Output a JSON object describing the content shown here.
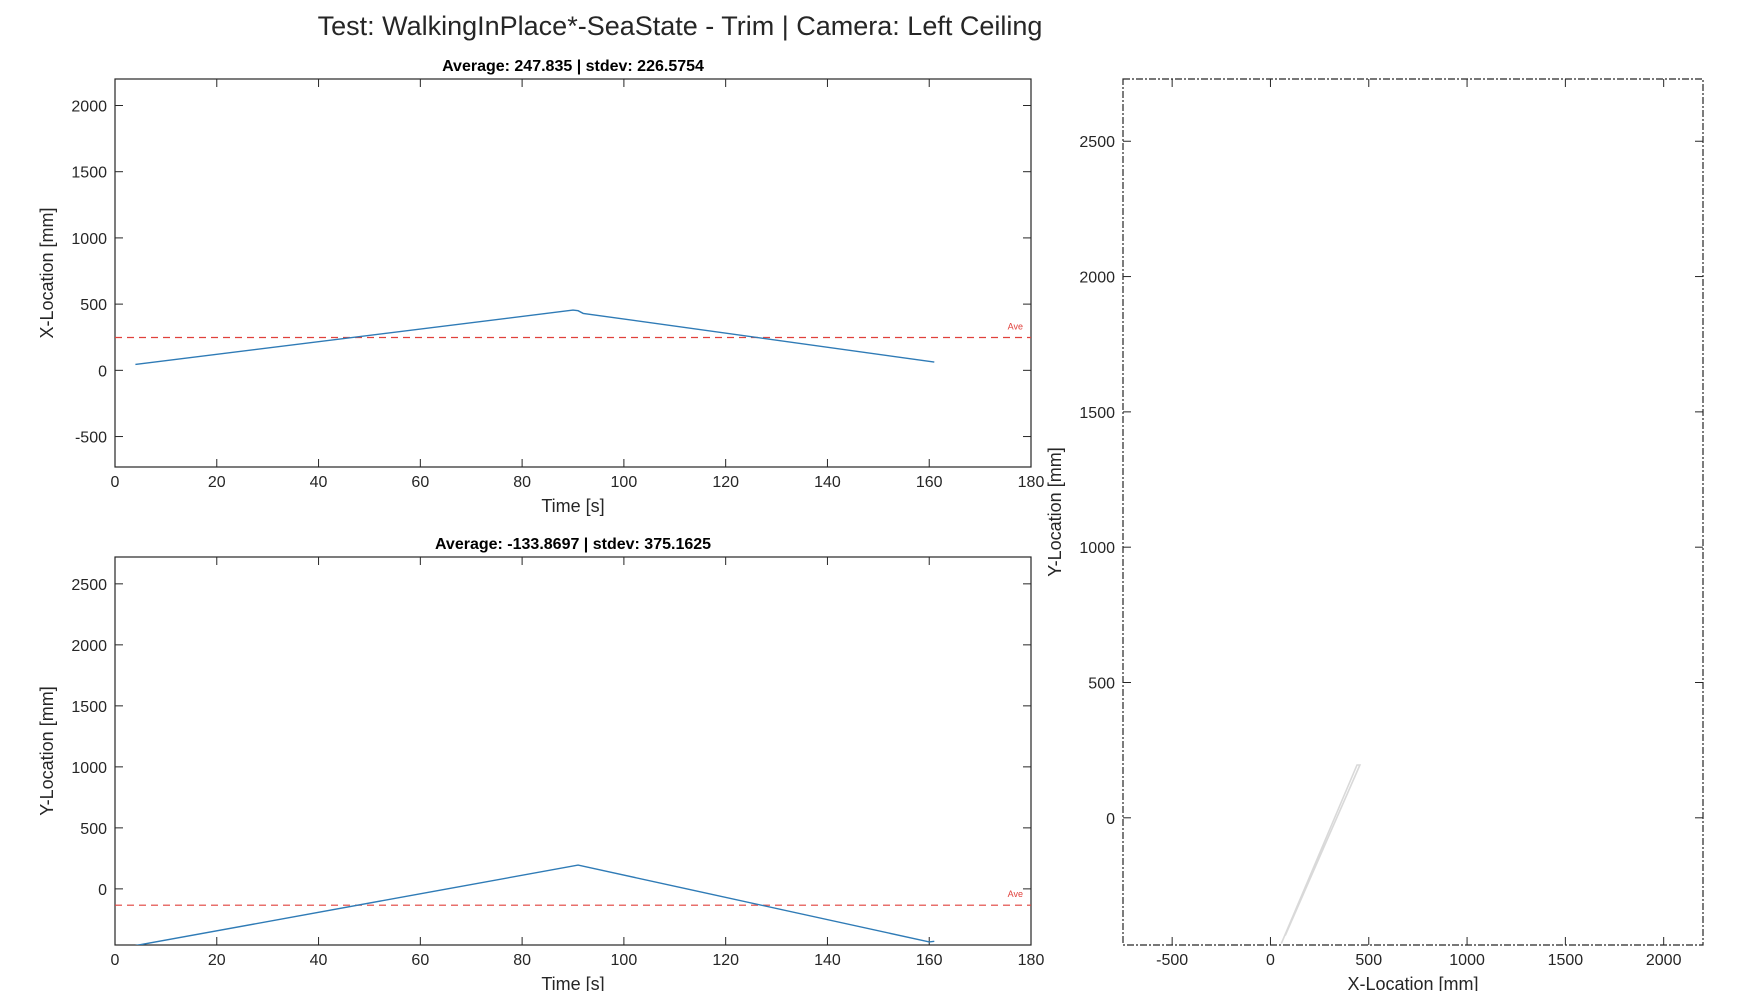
{
  "figure_title": "Test: WalkingInPlace*-SeaState - Trim  |  Camera: Left Ceiling",
  "colors": {
    "series": "#2f7bb6",
    "average": "#e0413c",
    "trajectory": "#d9d9d9",
    "axis": "#262626"
  },
  "chart_data": [
    {
      "id": "x-time",
      "type": "line",
      "title": "Average: 247.835  |  stdev: 226.5754",
      "xlabel": "Time [s]",
      "ylabel": "X-Location [mm]",
      "xlim": [
        0,
        180
      ],
      "ylim": [
        -730,
        2200
      ],
      "xticks": [
        0,
        20,
        40,
        60,
        80,
        100,
        120,
        140,
        160,
        180
      ],
      "yticks": [
        -500,
        0,
        500,
        1000,
        1500,
        2000
      ],
      "grid": false,
      "series": [
        {
          "name": "X-Location",
          "x": [
            4,
            90,
            91,
            92,
            161
          ],
          "y": [
            45,
            455,
            450,
            430,
            62
          ]
        }
      ],
      "average": {
        "label": "Ave",
        "value": 247.835
      }
    },
    {
      "id": "y-time",
      "type": "line",
      "title": "Average: -133.8697  |  stdev: 375.1625",
      "xlabel": "Time [s]",
      "ylabel": "Y-Location [mm]",
      "xlim": [
        0,
        180
      ],
      "ylim": [
        -460,
        2720
      ],
      "xticks": [
        0,
        20,
        40,
        60,
        80,
        100,
        120,
        140,
        160,
        180
      ],
      "yticks": [
        0,
        500,
        1000,
        1500,
        2000,
        2500
      ],
      "grid": false,
      "series": [
        {
          "name": "Y-Location",
          "x": [
            4,
            91,
            160,
            161
          ],
          "y": [
            -465,
            195,
            -435,
            -430
          ]
        }
      ],
      "average": {
        "label": "Ave",
        "value": -133.8697
      }
    },
    {
      "id": "xy-trajectory",
      "type": "line",
      "title": "",
      "xlabel": "X-Location [mm]",
      "ylabel": "Y-Location [mm]",
      "xlim": [
        -750,
        2200
      ],
      "ylim": [
        -470,
        2730
      ],
      "xticks": [
        -500,
        0,
        500,
        1000,
        1500,
        2000
      ],
      "yticks": [
        0,
        500,
        1000,
        1500,
        2000,
        2500
      ],
      "grid": false,
      "series": [
        {
          "name": "Trajectory",
          "x": [
            55,
            440,
            455,
            75
          ],
          "y": [
            -465,
            195,
            195,
            -435
          ]
        }
      ]
    }
  ]
}
